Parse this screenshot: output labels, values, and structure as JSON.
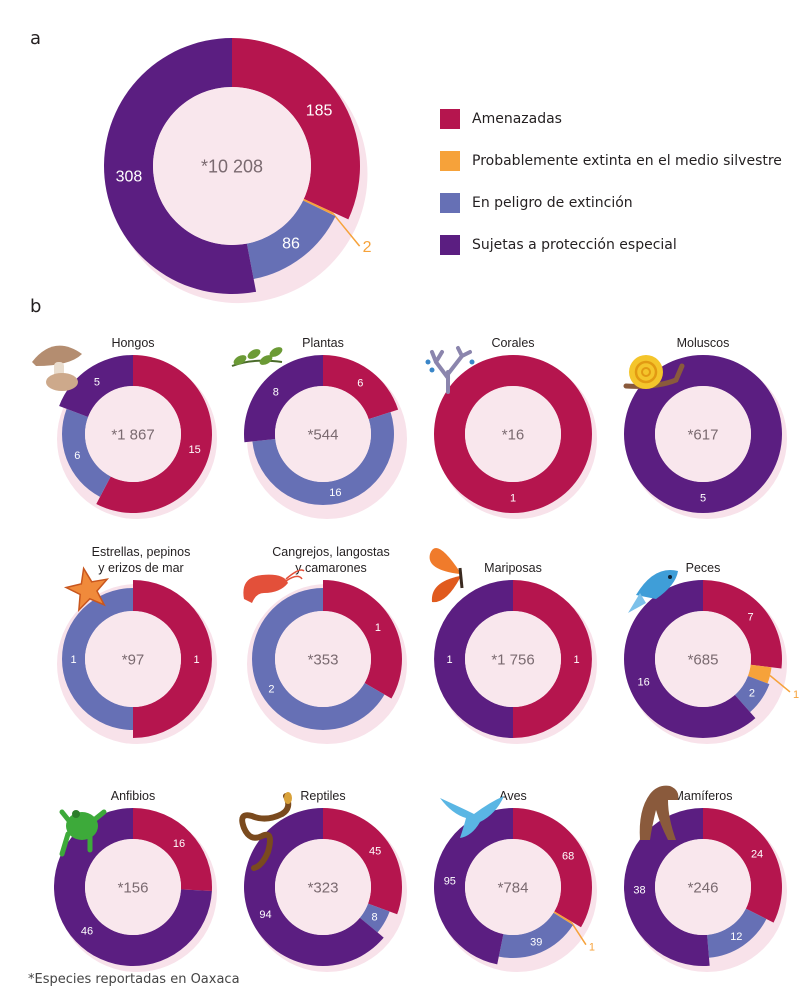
{
  "colors": {
    "amenazadas": "#b5154e",
    "extinta": "#f6a23a",
    "peligro": "#6670b5",
    "proteccion": "#5b1e81",
    "inner": "#f9e7ed",
    "halo": "#f8e2ea"
  },
  "panel_a_letter": "a",
  "panel_b_letter": "b",
  "legend": [
    {
      "key": "amenazadas",
      "label": "Amenazadas"
    },
    {
      "key": "extinta",
      "label": "Probablemente extinta en el medio silvestre"
    },
    {
      "key": "peligro",
      "label": "En peligro de extinción"
    },
    {
      "key": "proteccion",
      "label": "Sujetas a protección especial"
    }
  ],
  "footnote": "*Especies reportadas en Oaxaca",
  "chart_data": [
    {
      "type": "pie",
      "name": "Total",
      "center": "*10 208",
      "slices": [
        {
          "category": "amenazadas",
          "value": 185
        },
        {
          "category": "extinta",
          "value": 2
        },
        {
          "category": "peligro",
          "value": 86
        },
        {
          "category": "proteccion",
          "value": 308
        }
      ]
    },
    {
      "type": "pie",
      "title": "Hongos",
      "icon": "mushroom-icon",
      "center": "*1 867",
      "slices": [
        {
          "category": "amenazadas",
          "value": 15
        },
        {
          "category": "peligro",
          "value": 6
        },
        {
          "category": "proteccion",
          "value": 5
        }
      ]
    },
    {
      "type": "pie",
      "title": "Plantas",
      "icon": "plant-icon",
      "center": "*544",
      "slices": [
        {
          "category": "amenazadas",
          "value": 6
        },
        {
          "category": "peligro",
          "value": 16
        },
        {
          "category": "proteccion",
          "value": 8
        }
      ]
    },
    {
      "type": "pie",
      "title": "Corales",
      "icon": "coral-icon",
      "center": "*16",
      "slices": [
        {
          "category": "amenazadas",
          "value": 1
        }
      ]
    },
    {
      "type": "pie",
      "title": "Moluscos",
      "icon": "snail-icon",
      "center": "*617",
      "slices": [
        {
          "category": "proteccion",
          "value": 5
        }
      ]
    },
    {
      "type": "pie",
      "title": "Estrellas, pepinos\ny erizos de mar",
      "icon": "starfish-icon",
      "center": "*97",
      "slices": [
        {
          "category": "amenazadas",
          "value": 1
        },
        {
          "category": "peligro",
          "value": 1
        }
      ]
    },
    {
      "type": "pie",
      "title": "Cangrejos, langostas\ny camarones",
      "icon": "shrimp-icon",
      "center": "*353",
      "slices": [
        {
          "category": "amenazadas",
          "value": 1
        },
        {
          "category": "peligro",
          "value": 2
        }
      ]
    },
    {
      "type": "pie",
      "title": "Mariposas",
      "icon": "butterfly-icon",
      "center": "*1 756",
      "slices": [
        {
          "category": "amenazadas",
          "value": 1
        },
        {
          "category": "proteccion",
          "value": 1
        }
      ]
    },
    {
      "type": "pie",
      "title": "Peces",
      "icon": "fish-icon",
      "center": "*685",
      "slices": [
        {
          "category": "amenazadas",
          "value": 7
        },
        {
          "category": "extinta",
          "value": 1
        },
        {
          "category": "peligro",
          "value": 2
        },
        {
          "category": "proteccion",
          "value": 16
        }
      ]
    },
    {
      "type": "pie",
      "title": "Anfibios",
      "icon": "frog-icon",
      "center": "*156",
      "slices": [
        {
          "category": "amenazadas",
          "value": 16
        },
        {
          "category": "proteccion",
          "value": 46
        }
      ]
    },
    {
      "type": "pie",
      "title": "Reptiles",
      "icon": "snake-icon",
      "center": "*323",
      "slices": [
        {
          "category": "amenazadas",
          "value": 45
        },
        {
          "category": "peligro",
          "value": 8
        },
        {
          "category": "proteccion",
          "value": 94
        }
      ]
    },
    {
      "type": "pie",
      "title": "Aves",
      "icon": "bird-icon",
      "center": "*784",
      "slices": [
        {
          "category": "amenazadas",
          "value": 68
        },
        {
          "category": "extinta",
          "value": 1
        },
        {
          "category": "peligro",
          "value": 39
        },
        {
          "category": "proteccion",
          "value": 95
        }
      ]
    },
    {
      "type": "pie",
      "title": "Mamíferos",
      "icon": "cougar-icon",
      "center": "*246",
      "slices": [
        {
          "category": "amenazadas",
          "value": 24
        },
        {
          "category": "peligro",
          "value": 12
        },
        {
          "category": "proteccion",
          "value": 38
        }
      ]
    }
  ]
}
